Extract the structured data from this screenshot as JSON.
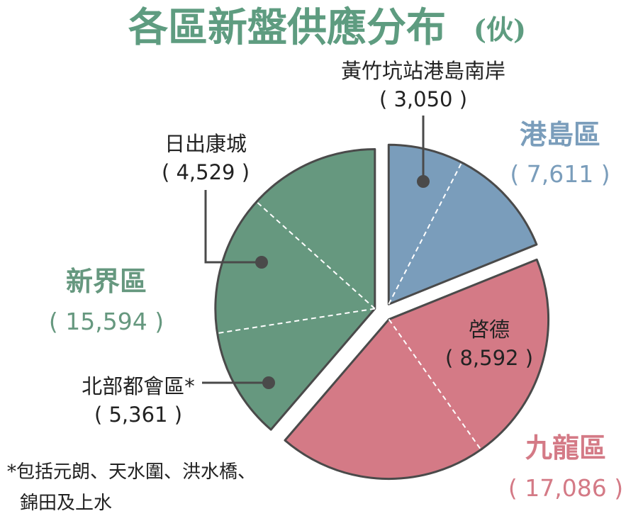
{
  "title": "各區新盤供應分布",
  "title_unit": "(伙)",
  "colors": {
    "title": "#5e9c80",
    "hk_island": "#7a9dbb",
    "kowloon": "#d47a86",
    "nt": "#66987f",
    "outline": "#4a4a4a",
    "divider": "#ffffff"
  },
  "chart_data": {
    "type": "pie",
    "title": "各區新盤供應分布",
    "unit": "(伙)",
    "regions": [
      {
        "key": "hk_island",
        "name": "港島區",
        "value_label": "( 7,611 )",
        "value": 7611,
        "color": "#7a9dbb",
        "subareas": [
          {
            "name": "黃竹坑站港島南岸",
            "value_label": "( 3,050 )",
            "value": 3050
          }
        ]
      },
      {
        "key": "kowloon",
        "name": "九龍區",
        "value_label": "( 17,086 )",
        "value": 17086,
        "color": "#d47a86",
        "subareas": [
          {
            "name": "啓德",
            "value_label": "( 8,592 )",
            "value": 8592
          }
        ]
      },
      {
        "key": "nt",
        "name": "新界區",
        "value_label": "( 15,594 )",
        "value": 15594,
        "color": "#66987f",
        "subareas": [
          {
            "name": "日出康城",
            "value_label": "( 4,529 )",
            "value": 4529
          },
          {
            "name": "北部都會區*",
            "value_label": "( 5,361 )",
            "value": 5361
          }
        ]
      }
    ]
  },
  "footnote": {
    "line1": "*包括元朗、天水圍、洪水橋、",
    "line2": "錦田及上水"
  }
}
